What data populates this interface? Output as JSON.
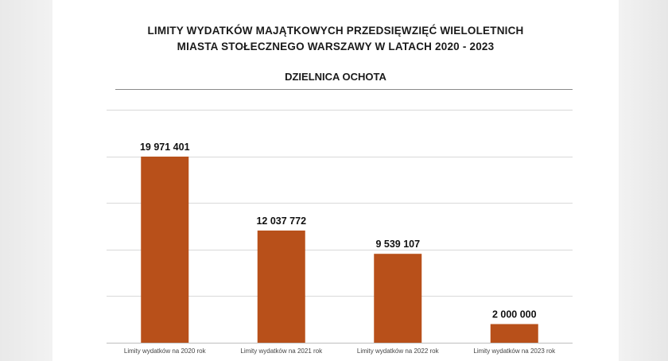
{
  "chart_data": {
    "type": "bar",
    "title_line1": "LIMITY WYDATKÓW  MAJĄTKOWYCH  PRZEDSIĘWZIĘĆ WIELOLETNICH",
    "title_line2": "MIASTA STOŁECZNEGO  WARSZAWY W LATACH 2020 - 2023",
    "subtitle": "DZIELNICA OCHOTA",
    "categories": [
      "Limity wydatków na 2020 rok",
      "Limity wydatków na 2021 rok",
      "Limity wydatków na 2022 rok",
      "Limity wydatków na 2023 rok"
    ],
    "values": [
      19971401,
      12037772,
      9539107,
      2000000
    ],
    "data_labels": [
      "19 971 401",
      "12 037 772",
      "9 539 107",
      "2 000 000"
    ],
    "ylim": [
      0,
      25000000
    ],
    "grid": true,
    "bar_color": "#b8501a"
  }
}
